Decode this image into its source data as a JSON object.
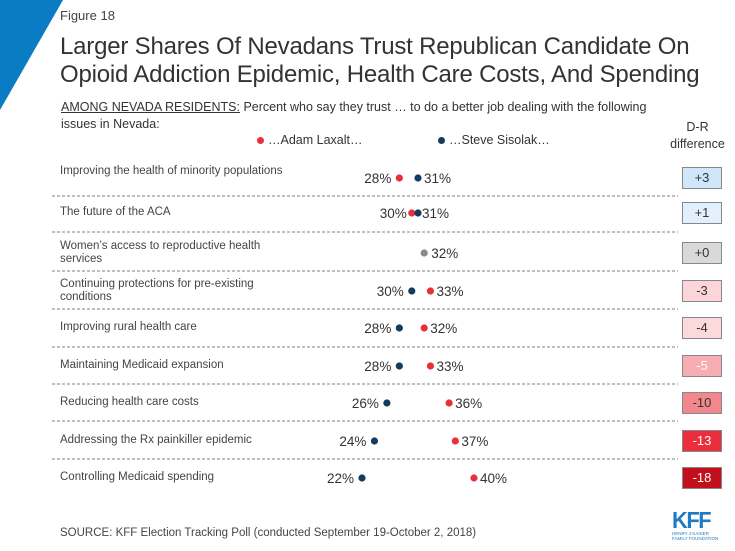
{
  "figure_label": "Figure 18",
  "title": "Larger Shares Of Nevadans Trust Republican Candidate On Opioid Addiction Epidemic, Health Care Costs, And Spending",
  "subtitle_prefix": "AMONG NEVADA RESIDENTS:",
  "subtitle_text": " Percent who say they trust … to do a better job dealing with the following issues in Nevada:",
  "diff_header": "D-R difference",
  "source": "SOURCE: KFF Election Tracking Poll (conducted September 19-October 2, 2018)",
  "logo": {
    "name": "KFF",
    "sub1": "HENRY J KAISER",
    "sub2": "FAMILY FOUNDATION"
  },
  "colors": {
    "laxalt": "#e8303a",
    "sisolak": "#143b5e",
    "tie": "#8a8a8a",
    "brand_blue": "#0a7cc4"
  },
  "chart_data": {
    "type": "scatter",
    "subtype": "dot-plot",
    "title": "Larger Shares Of Nevadans Trust Republican Candidate On Opioid Addiction Epidemic, Health Care Costs, And Spending",
    "legend": [
      {
        "name": "…Adam Laxalt…",
        "party": "R",
        "color": "#e8303a"
      },
      {
        "name": "…Steve Sisolak…",
        "party": "D",
        "color": "#143b5e"
      }
    ],
    "legend_position": "top",
    "categories": [
      "Improving the health of minority populations",
      "The future of the ACA",
      "Women’s access to reproductive health services",
      "Continuing protections for pre-existing conditions",
      "Improving rural health care",
      "Maintaining Medicaid expansion",
      "Reducing health care costs",
      "Addressing the Rx painkiller epidemic",
      "Controlling Medicaid spending"
    ],
    "series": [
      {
        "name": "Adam Laxalt",
        "values": [
          28,
          30,
          32,
          33,
          32,
          33,
          36,
          37,
          40
        ]
      },
      {
        "name": "Steve Sisolak",
        "values": [
          31,
          31,
          32,
          30,
          28,
          28,
          26,
          24,
          22
        ]
      }
    ],
    "d_minus_r": [
      "+3",
      "+1",
      "+0",
      "-3",
      "-4",
      "-5",
      "-10",
      "-13",
      "-18"
    ],
    "diff_values": [
      3,
      1,
      0,
      -3,
      -4,
      -5,
      -10,
      -13,
      -18
    ],
    "value_suffix": "%",
    "xlim": [
      22,
      40
    ],
    "grid": false
  }
}
